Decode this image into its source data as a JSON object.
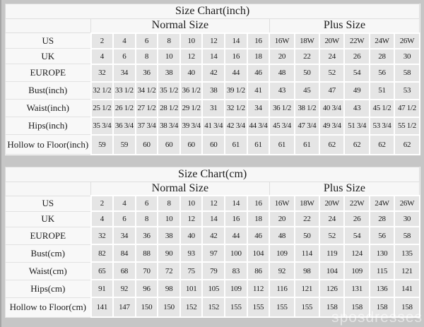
{
  "page": {
    "background": "#c6c6c6",
    "watermark": "sposdresses"
  },
  "colors": {
    "table_bg": "#f7f7f7",
    "data_cell_bg": "#e5e5e5",
    "gridline": "#ffffff",
    "label_border": "#e2e2e2",
    "text": "#1b1b1b"
  },
  "tables": [
    {
      "title": "Size Chart(inch)",
      "group_headers": {
        "normal": "Normal Size",
        "plus": "Plus Size"
      },
      "rows": [
        {
          "label": "US",
          "normal": [
            "2",
            "4",
            "6",
            "8",
            "10",
            "12",
            "14",
            "16"
          ],
          "plus": [
            "16W",
            "18W",
            "20W",
            "22W",
            "24W",
            "26W"
          ]
        },
        {
          "label": "UK",
          "normal": [
            "4",
            "6",
            "8",
            "10",
            "12",
            "14",
            "16",
            "18"
          ],
          "plus": [
            "20",
            "22",
            "24",
            "26",
            "28",
            "30"
          ]
        },
        {
          "label": "EUROPE",
          "normal": [
            "32",
            "34",
            "36",
            "38",
            "40",
            "42",
            "44",
            "46"
          ],
          "plus": [
            "48",
            "50",
            "52",
            "54",
            "56",
            "58"
          ]
        },
        {
          "label": "Bust(inch)",
          "normal": [
            "32 1/2",
            "33 1/2",
            "34 1/2",
            "35 1/2",
            "36 1/2",
            "38",
            "39 1/2",
            "41"
          ],
          "plus": [
            "43",
            "45",
            "47",
            "49",
            "51",
            "53"
          ]
        },
        {
          "label": "Waist(inch)",
          "normal": [
            "25 1/2",
            "26 1/2",
            "27 1/2",
            "28 1/2",
            "29 1/2",
            "31",
            "32 1/2",
            "34"
          ],
          "plus": [
            "36 1/2",
            "38 1/2",
            "40 3/4",
            "43",
            "45 1/2",
            "47 1/2"
          ]
        },
        {
          "label": "Hips(inch)",
          "normal": [
            "35 3/4",
            "36 3/4",
            "37 3/4",
            "38 3/4",
            "39 3/4",
            "41 3/4",
            "42 3/4",
            "44 3/4"
          ],
          "plus": [
            "45 3/4",
            "47 3/4",
            "49 3/4",
            "51 3/4",
            "53 3/4",
            "55 1/2"
          ]
        },
        {
          "label": "Hollow to Floor(inch)",
          "normal": [
            "59",
            "59",
            "60",
            "60",
            "60",
            "60",
            "61",
            "61"
          ],
          "plus": [
            "61",
            "61",
            "62",
            "62",
            "62",
            "62"
          ]
        }
      ]
    },
    {
      "title": "Size Chart(cm)",
      "group_headers": {
        "normal": "Normal Size",
        "plus": "Plus Size"
      },
      "rows": [
        {
          "label": "US",
          "normal": [
            "2",
            "4",
            "6",
            "8",
            "10",
            "12",
            "14",
            "16"
          ],
          "plus": [
            "16W",
            "18W",
            "20W",
            "22W",
            "24W",
            "26W"
          ]
        },
        {
          "label": "UK",
          "normal": [
            "4",
            "6",
            "8",
            "10",
            "12",
            "14",
            "16",
            "18"
          ],
          "plus": [
            "20",
            "22",
            "24",
            "26",
            "28",
            "30"
          ]
        },
        {
          "label": "EUROPE",
          "normal": [
            "32",
            "34",
            "36",
            "38",
            "40",
            "42",
            "44",
            "46"
          ],
          "plus": [
            "48",
            "50",
            "52",
            "54",
            "56",
            "58"
          ]
        },
        {
          "label": "Bust(cm)",
          "normal": [
            "82",
            "84",
            "88",
            "90",
            "93",
            "97",
            "100",
            "104"
          ],
          "plus": [
            "109",
            "114",
            "119",
            "124",
            "130",
            "135"
          ]
        },
        {
          "label": "Waist(cm)",
          "normal": [
            "65",
            "68",
            "70",
            "72",
            "75",
            "79",
            "83",
            "86"
          ],
          "plus": [
            "92",
            "98",
            "104",
            "109",
            "115",
            "121"
          ]
        },
        {
          "label": "Hips(cm)",
          "normal": [
            "91",
            "92",
            "96",
            "98",
            "101",
            "105",
            "109",
            "112"
          ],
          "plus": [
            "116",
            "121",
            "126",
            "131",
            "136",
            "141"
          ]
        },
        {
          "label": "Hollow to Floor(cm)",
          "normal": [
            "141",
            "147",
            "150",
            "150",
            "152",
            "152",
            "155",
            "155"
          ],
          "plus": [
            "155",
            "155",
            "158",
            "158",
            "158",
            "158"
          ]
        }
      ]
    }
  ]
}
